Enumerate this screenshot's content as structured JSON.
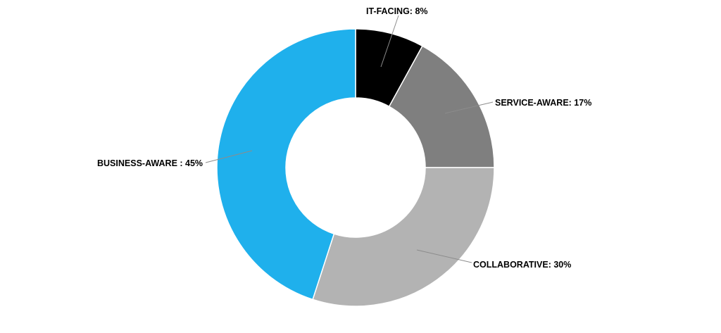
{
  "chart_data": {
    "type": "pie",
    "subtype": "donut",
    "title": "",
    "slices": [
      {
        "label": "IT-FACING",
        "value": 8,
        "display": "IT-FACING: 8%",
        "color": "#000000"
      },
      {
        "label": "SERVICE-AWARE",
        "value": 17,
        "display": "SERVICE-AWARE: 17%",
        "color": "#7f7f7f"
      },
      {
        "label": "COLLABORATIVE",
        "value": 30,
        "display": "COLLABORATIVE: 30%",
        "color": "#b3b3b3"
      },
      {
        "label": "BUSINESS-AWARE",
        "value": 45,
        "display": "BUSINESS-AWARE : 45%",
        "color": "#1fb0ec"
      }
    ],
    "legend": "none",
    "data_labels": "outside with leader lines"
  }
}
